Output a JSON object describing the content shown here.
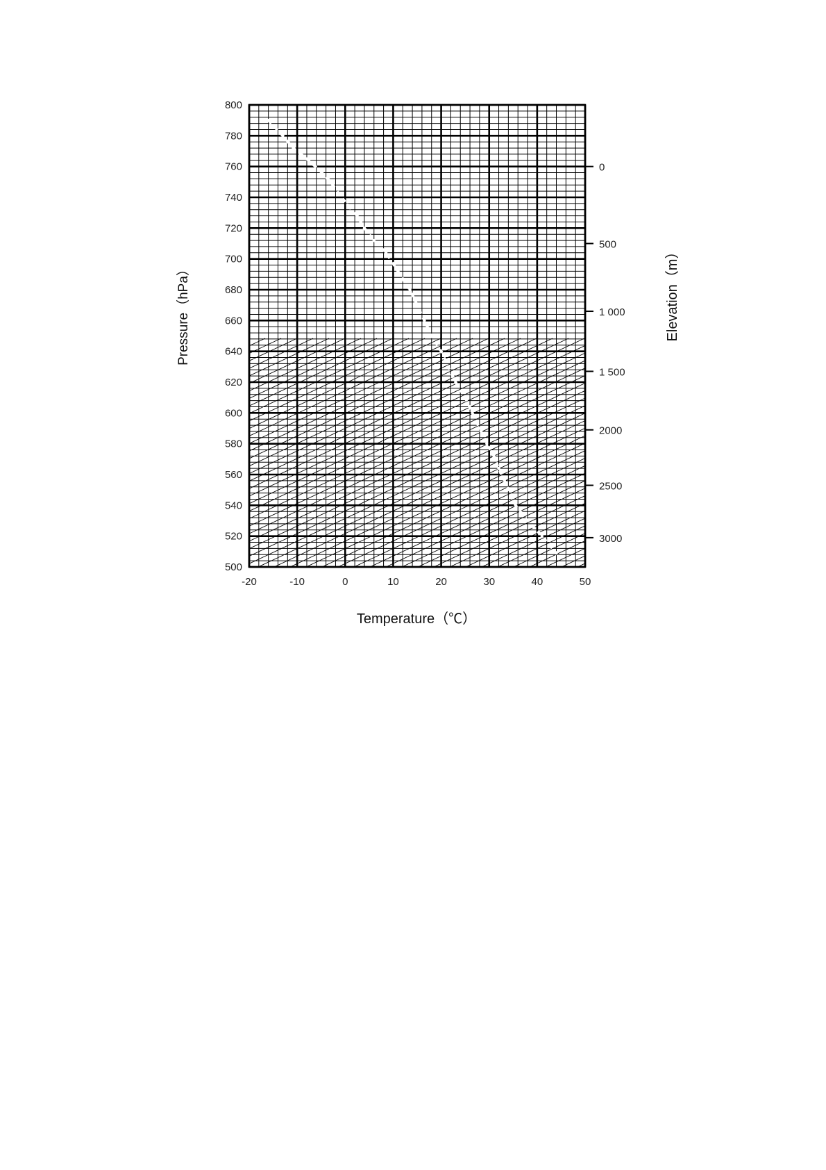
{
  "chart_data": {
    "type": "thermodynamic-diagram",
    "xlabel": "Temperature（℃）",
    "ylabel": "Pressure（hPa）",
    "y2label": "Elevation（m）",
    "xlim": [
      -20,
      50
    ],
    "ylim": [
      500,
      800
    ],
    "x_ticks": [
      -20,
      -10,
      0,
      10,
      20,
      30,
      40,
      50
    ],
    "x_tick_labels": [
      "-20",
      "-10",
      "0",
      "10",
      "20",
      "30",
      "40",
      "50"
    ],
    "y_ticks": [
      500,
      520,
      540,
      560,
      580,
      600,
      620,
      640,
      660,
      680,
      700,
      720,
      740,
      760,
      780,
      800
    ],
    "y_tick_labels": [
      "500",
      "520",
      "540",
      "560",
      "580",
      "600",
      "620",
      "640",
      "660",
      "680",
      "700",
      "720",
      "740",
      "760",
      "780",
      "800"
    ],
    "elevation_ticks": [
      {
        "pressure": 760,
        "label": "0"
      },
      {
        "pressure": 710,
        "label": "500"
      },
      {
        "pressure": 666,
        "label": "1 000"
      },
      {
        "pressure": 627,
        "label": "1 500"
      },
      {
        "pressure": 589,
        "label": "2000"
      },
      {
        "pressure": 553,
        "label": "2500"
      },
      {
        "pressure": 519,
        "label": "3000"
      }
    ],
    "grid": true,
    "grid_minor_x_step": 2,
    "grid_minor_y_step": 4,
    "reference_lines": "diagonal",
    "profile_points": [
      [
        -16,
        790
      ],
      [
        -13,
        780
      ],
      [
        -10.5,
        771
      ],
      [
        -8,
        765
      ],
      [
        -5.5,
        758
      ],
      [
        -3,
        750
      ],
      [
        -1.5,
        743
      ],
      [
        0.5,
        735
      ],
      [
        2.5,
        728
      ],
      [
        4,
        720
      ],
      [
        6,
        712
      ],
      [
        8.5,
        704
      ],
      [
        10,
        697
      ],
      [
        12,
        687
      ],
      [
        13.5,
        680
      ],
      [
        15,
        670
      ],
      [
        16.5,
        660
      ],
      [
        18,
        650
      ],
      [
        20,
        640
      ],
      [
        21.5,
        630
      ],
      [
        23,
        620
      ],
      [
        25,
        610
      ],
      [
        26.5,
        600
      ],
      [
        28,
        590
      ],
      [
        29.5,
        580
      ],
      [
        31,
        572
      ],
      [
        32,
        564
      ],
      [
        33.5,
        554
      ],
      [
        35.5,
        540
      ],
      [
        38,
        530
      ],
      [
        41,
        520
      ],
      [
        44,
        509
      ]
    ]
  },
  "colors": {
    "grid": "#000000",
    "background": "#ffffff",
    "profile": "#ffffff"
  }
}
